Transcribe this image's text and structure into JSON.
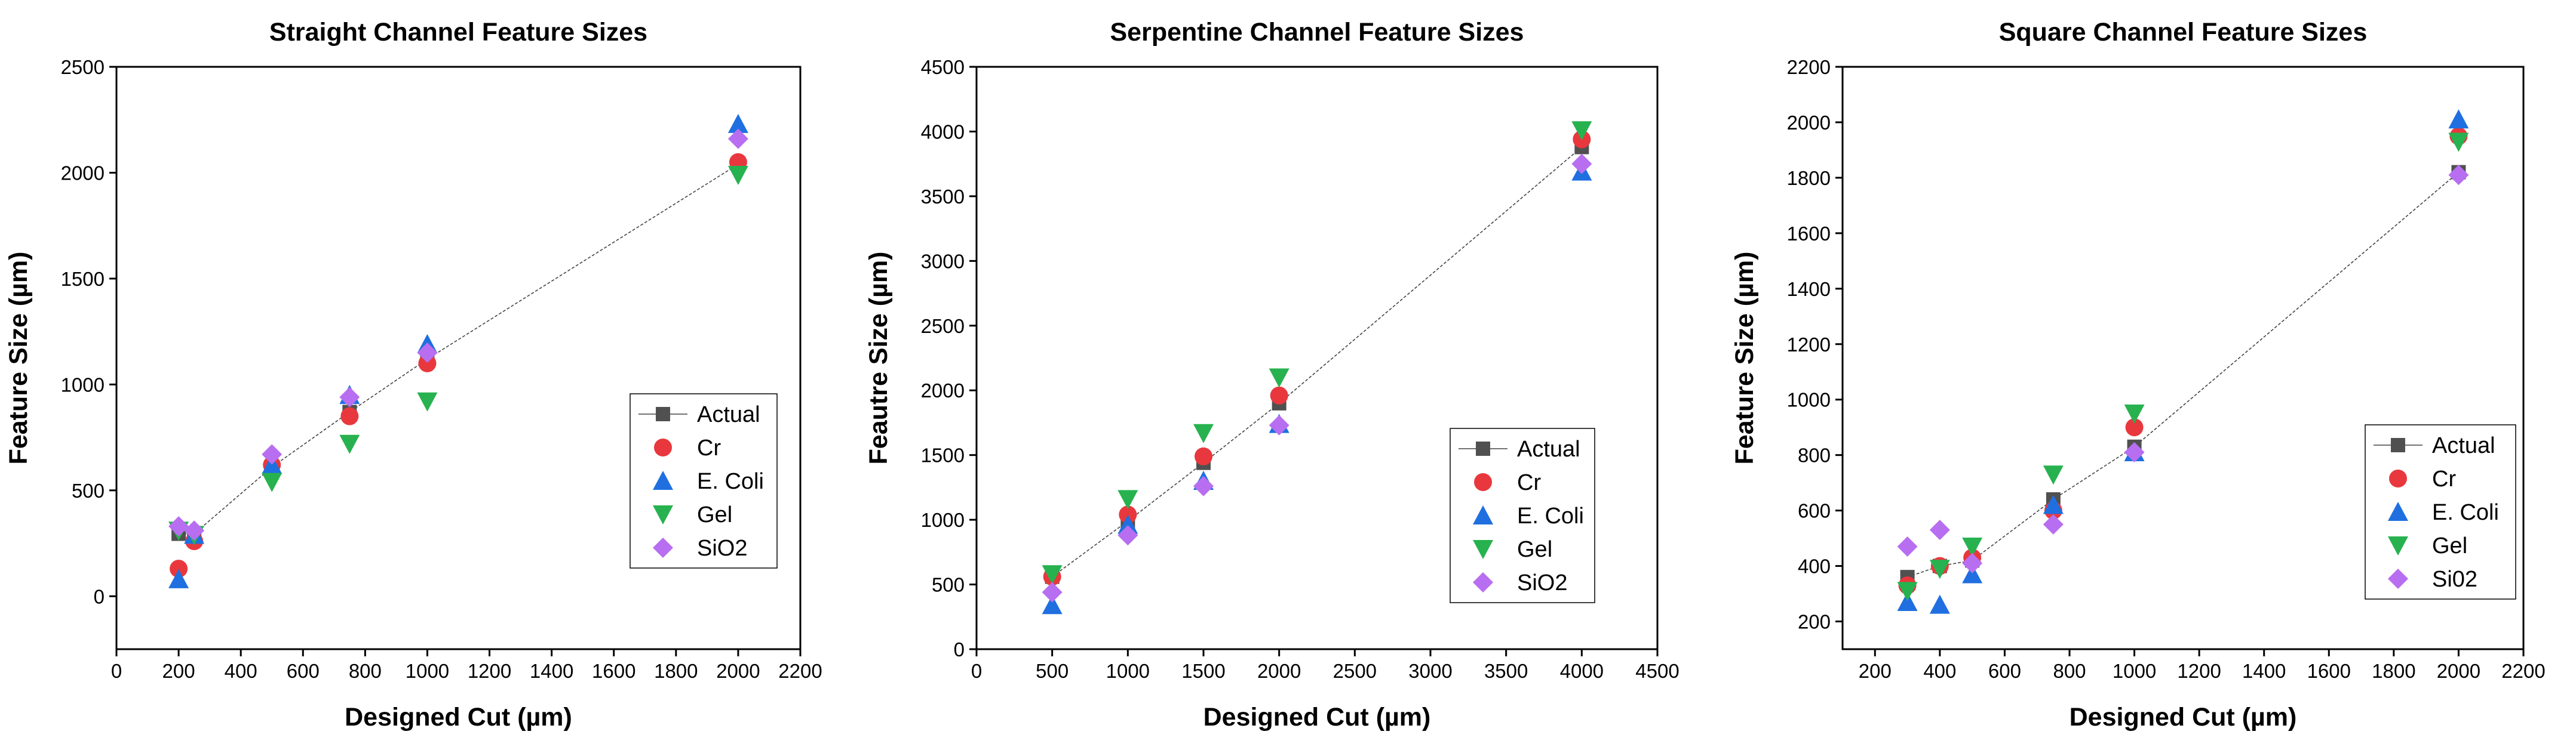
{
  "colors": {
    "Actual": "#505050",
    "Cr": "#e8383d",
    "E. Coli": "#1f6fe0",
    "Gel": "#27b24f",
    "SiO2": "#b86ef0"
  },
  "chart_data": [
    {
      "type": "scatter",
      "title": "Straight Channel Feature Sizes",
      "xlabel": "Designed Cut (µm)",
      "ylabel": "Feature Size (µm)",
      "xlim": [
        0,
        2200
      ],
      "ylim": [
        -250,
        2500
      ],
      "xticks": [
        0,
        200,
        400,
        600,
        800,
        1000,
        1200,
        1400,
        1600,
        1800,
        2000,
        2200
      ],
      "yticks": [
        0,
        500,
        1000,
        1500,
        2000,
        2500
      ],
      "legend": "center-right",
      "series": [
        {
          "name": "Actual",
          "marker": "square",
          "line": true,
          "points": [
            [
              200,
              295
            ],
            [
              250,
              295
            ],
            [
              500,
              610
            ],
            [
              750,
              870
            ],
            [
              1000,
              1120
            ],
            [
              2000,
              2040
            ]
          ]
        },
        {
          "name": "Cr",
          "marker": "circle",
          "points": [
            [
              200,
              130
            ],
            [
              250,
              260
            ],
            [
              500,
              620
            ],
            [
              750,
              850
            ],
            [
              1000,
              1100
            ],
            [
              2000,
              2050
            ]
          ]
        },
        {
          "name": "E. Coli",
          "marker": "triangle-up",
          "points": [
            [
              200,
              80
            ],
            [
              250,
              290
            ],
            [
              500,
              620
            ],
            [
              750,
              950
            ],
            [
              1000,
              1190
            ],
            [
              2000,
              2230
            ]
          ]
        },
        {
          "name": "Gel",
          "marker": "triangle-down",
          "points": [
            [
              200,
              310
            ],
            [
              250,
              290
            ],
            [
              500,
              540
            ],
            [
              750,
              720
            ],
            [
              1000,
              920
            ],
            [
              2000,
              1990
            ]
          ]
        },
        {
          "name": "SiO2",
          "marker": "diamond",
          "points": [
            [
              200,
              330
            ],
            [
              250,
              310
            ],
            [
              500,
              670
            ],
            [
              750,
              940
            ],
            [
              1000,
              1150
            ],
            [
              2000,
              2160
            ]
          ]
        }
      ]
    },
    {
      "type": "scatter",
      "title": "Serpentine Channel Feature Sizes",
      "xlabel": "Designed Cut (µm)",
      "ylabel": "Feautre Size  (µm)",
      "xlim": [
        0,
        4500
      ],
      "ylim": [
        0,
        4500
      ],
      "xticks": [
        0,
        500,
        1000,
        1500,
        2000,
        2500,
        3000,
        3500,
        4000,
        4500
      ],
      "yticks": [
        0,
        500,
        1000,
        1500,
        2000,
        2500,
        3000,
        3500,
        4000,
        4500
      ],
      "legend": "lower-right",
      "series": [
        {
          "name": "Actual",
          "marker": "square",
          "line": true,
          "points": [
            [
              500,
              560
            ],
            [
              1000,
              990
            ],
            [
              1500,
              1440
            ],
            [
              2000,
              1900
            ],
            [
              4000,
              3880
            ]
          ]
        },
        {
          "name": "Cr",
          "marker": "circle",
          "points": [
            [
              500,
              560
            ],
            [
              1000,
              1040
            ],
            [
              1500,
              1490
            ],
            [
              2000,
              1960
            ],
            [
              4000,
              3940
            ]
          ]
        },
        {
          "name": "E. Coli",
          "marker": "triangle-up",
          "points": [
            [
              500,
              340
            ],
            [
              1000,
              960
            ],
            [
              1500,
              1300
            ],
            [
              2000,
              1740
            ],
            [
              4000,
              3690
            ]
          ]
        },
        {
          "name": "Gel",
          "marker": "triangle-down",
          "points": [
            [
              500,
              580
            ],
            [
              1000,
              1160
            ],
            [
              1500,
              1670
            ],
            [
              2000,
              2100
            ],
            [
              4000,
              4010
            ]
          ]
        },
        {
          "name": "SiO2",
          "marker": "diamond",
          "points": [
            [
              500,
              440
            ],
            [
              1000,
              880
            ],
            [
              1500,
              1260
            ],
            [
              2000,
              1730
            ],
            [
              4000,
              3750
            ]
          ]
        }
      ]
    },
    {
      "type": "scatter",
      "title": "Square Channel Feature Sizes",
      "xlabel": "Designed Cut (µm)",
      "ylabel": "Feature Size (µm)",
      "xlim": [
        100,
        2200
      ],
      "ylim": [
        100,
        2200
      ],
      "xticks": [
        200,
        400,
        600,
        800,
        1000,
        1200,
        1400,
        1600,
        1800,
        2000,
        2200
      ],
      "yticks": [
        200,
        400,
        600,
        800,
        1000,
        1200,
        1400,
        1600,
        1800,
        2000,
        2200
      ],
      "legend": "lower-right",
      "series": [
        {
          "name": "Actual",
          "marker": "square",
          "line": true,
          "points": [
            [
              300,
              360
            ],
            [
              400,
              400
            ],
            [
              500,
              420
            ],
            [
              750,
              640
            ],
            [
              1000,
              830
            ],
            [
              2000,
              1820
            ]
          ]
        },
        {
          "name": "Cr",
          "marker": "circle",
          "points": [
            [
              300,
              330
            ],
            [
              400,
              400
            ],
            [
              500,
              430
            ],
            [
              750,
              600
            ],
            [
              1000,
              900
            ],
            [
              2000,
              1950
            ]
          ]
        },
        {
          "name": "E. Coli",
          "marker": "triangle-up",
          "points": [
            [
              300,
              270
            ],
            [
              400,
              260
            ],
            [
              500,
              370
            ],
            [
              750,
              620
            ],
            [
              1000,
              810
            ],
            [
              2000,
              2010
            ]
          ]
        },
        {
          "name": "Gel",
          "marker": "triangle-down",
          "points": [
            [
              300,
              310
            ],
            [
              400,
              390
            ],
            [
              500,
              470
            ],
            [
              750,
              730
            ],
            [
              1000,
              950
            ],
            [
              2000,
              1930
            ]
          ]
        },
        {
          "name": "Si02",
          "marker": "diamond",
          "points": [
            [
              300,
              470
            ],
            [
              400,
              530
            ],
            [
              500,
              410
            ],
            [
              750,
              550
            ],
            [
              1000,
              810
            ],
            [
              2000,
              1810
            ]
          ]
        }
      ]
    }
  ]
}
